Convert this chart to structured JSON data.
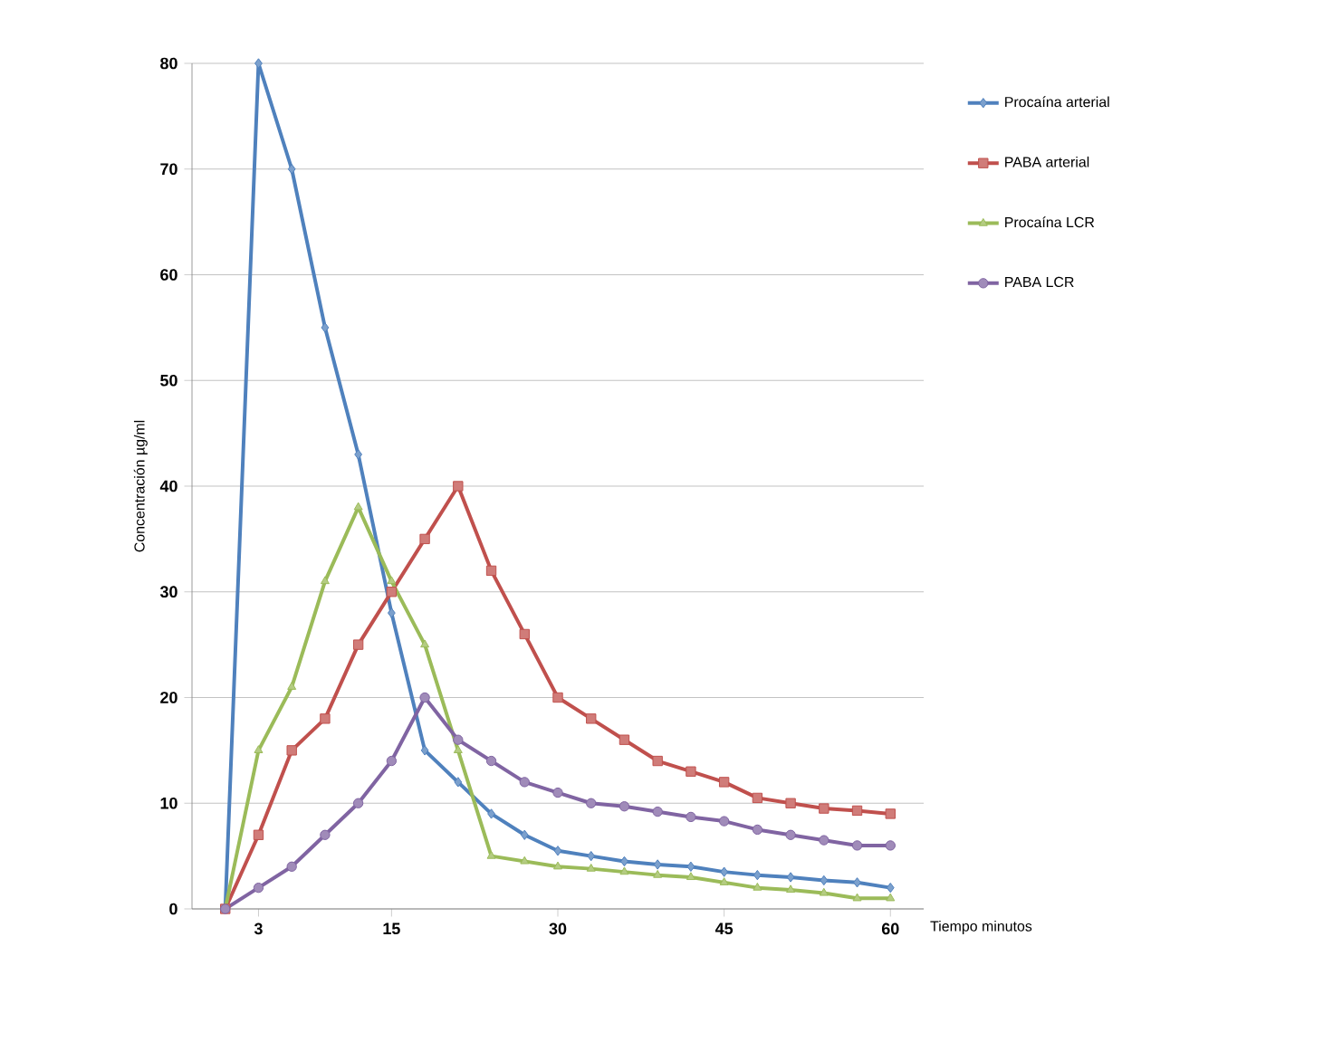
{
  "chart_data": {
    "type": "line",
    "xlabel": "Tiempo minutos",
    "ylabel": "Concentración µg/ml",
    "x": [
      0,
      3,
      6,
      9,
      12,
      15,
      18,
      21,
      24,
      27,
      30,
      33,
      36,
      39,
      42,
      45,
      48,
      51,
      54,
      57,
      60
    ],
    "series": [
      {
        "name": "Procaína arterial",
        "color": "#4f81bd",
        "marker": "diamond",
        "values": [
          0,
          80,
          70,
          55,
          43,
          28,
          15,
          12,
          9,
          7,
          5.5,
          5,
          4.5,
          4.2,
          4,
          3.5,
          3.2,
          3,
          2.7,
          2.5,
          2
        ]
      },
      {
        "name": "PABA arterial",
        "color": "#c0504d",
        "marker": "square",
        "values": [
          0,
          7,
          15,
          18,
          25,
          30,
          35,
          40,
          32,
          26,
          20,
          18,
          16,
          14,
          13,
          12,
          10.5,
          10,
          9.5,
          9.3,
          9
        ]
      },
      {
        "name": "Procaína LCR",
        "color": "#9bbb59",
        "marker": "triangle",
        "values": [
          0,
          15,
          21,
          31,
          38,
          31,
          25,
          15,
          5,
          4.5,
          4,
          3.8,
          3.5,
          3.2,
          3,
          2.5,
          2,
          1.8,
          1.5,
          1,
          1
        ]
      },
      {
        "name": "PABA LCR",
        "color": "#8064a2",
        "marker": "circle",
        "values": [
          0,
          2,
          4,
          7,
          10,
          14,
          20,
          16,
          14,
          12,
          11,
          10,
          9.7,
          9.2,
          8.7,
          8.3,
          7.5,
          7,
          6.5,
          6,
          6
        ]
      }
    ],
    "xlim": [
      -3,
      63
    ],
    "ylim": [
      0,
      80
    ],
    "xticks": [
      3,
      15,
      30,
      45,
      60
    ],
    "yticks": [
      0,
      10,
      20,
      30,
      40,
      50,
      60,
      70,
      80
    ],
    "grid": "y",
    "legend": "right",
    "line_style": "solid"
  }
}
